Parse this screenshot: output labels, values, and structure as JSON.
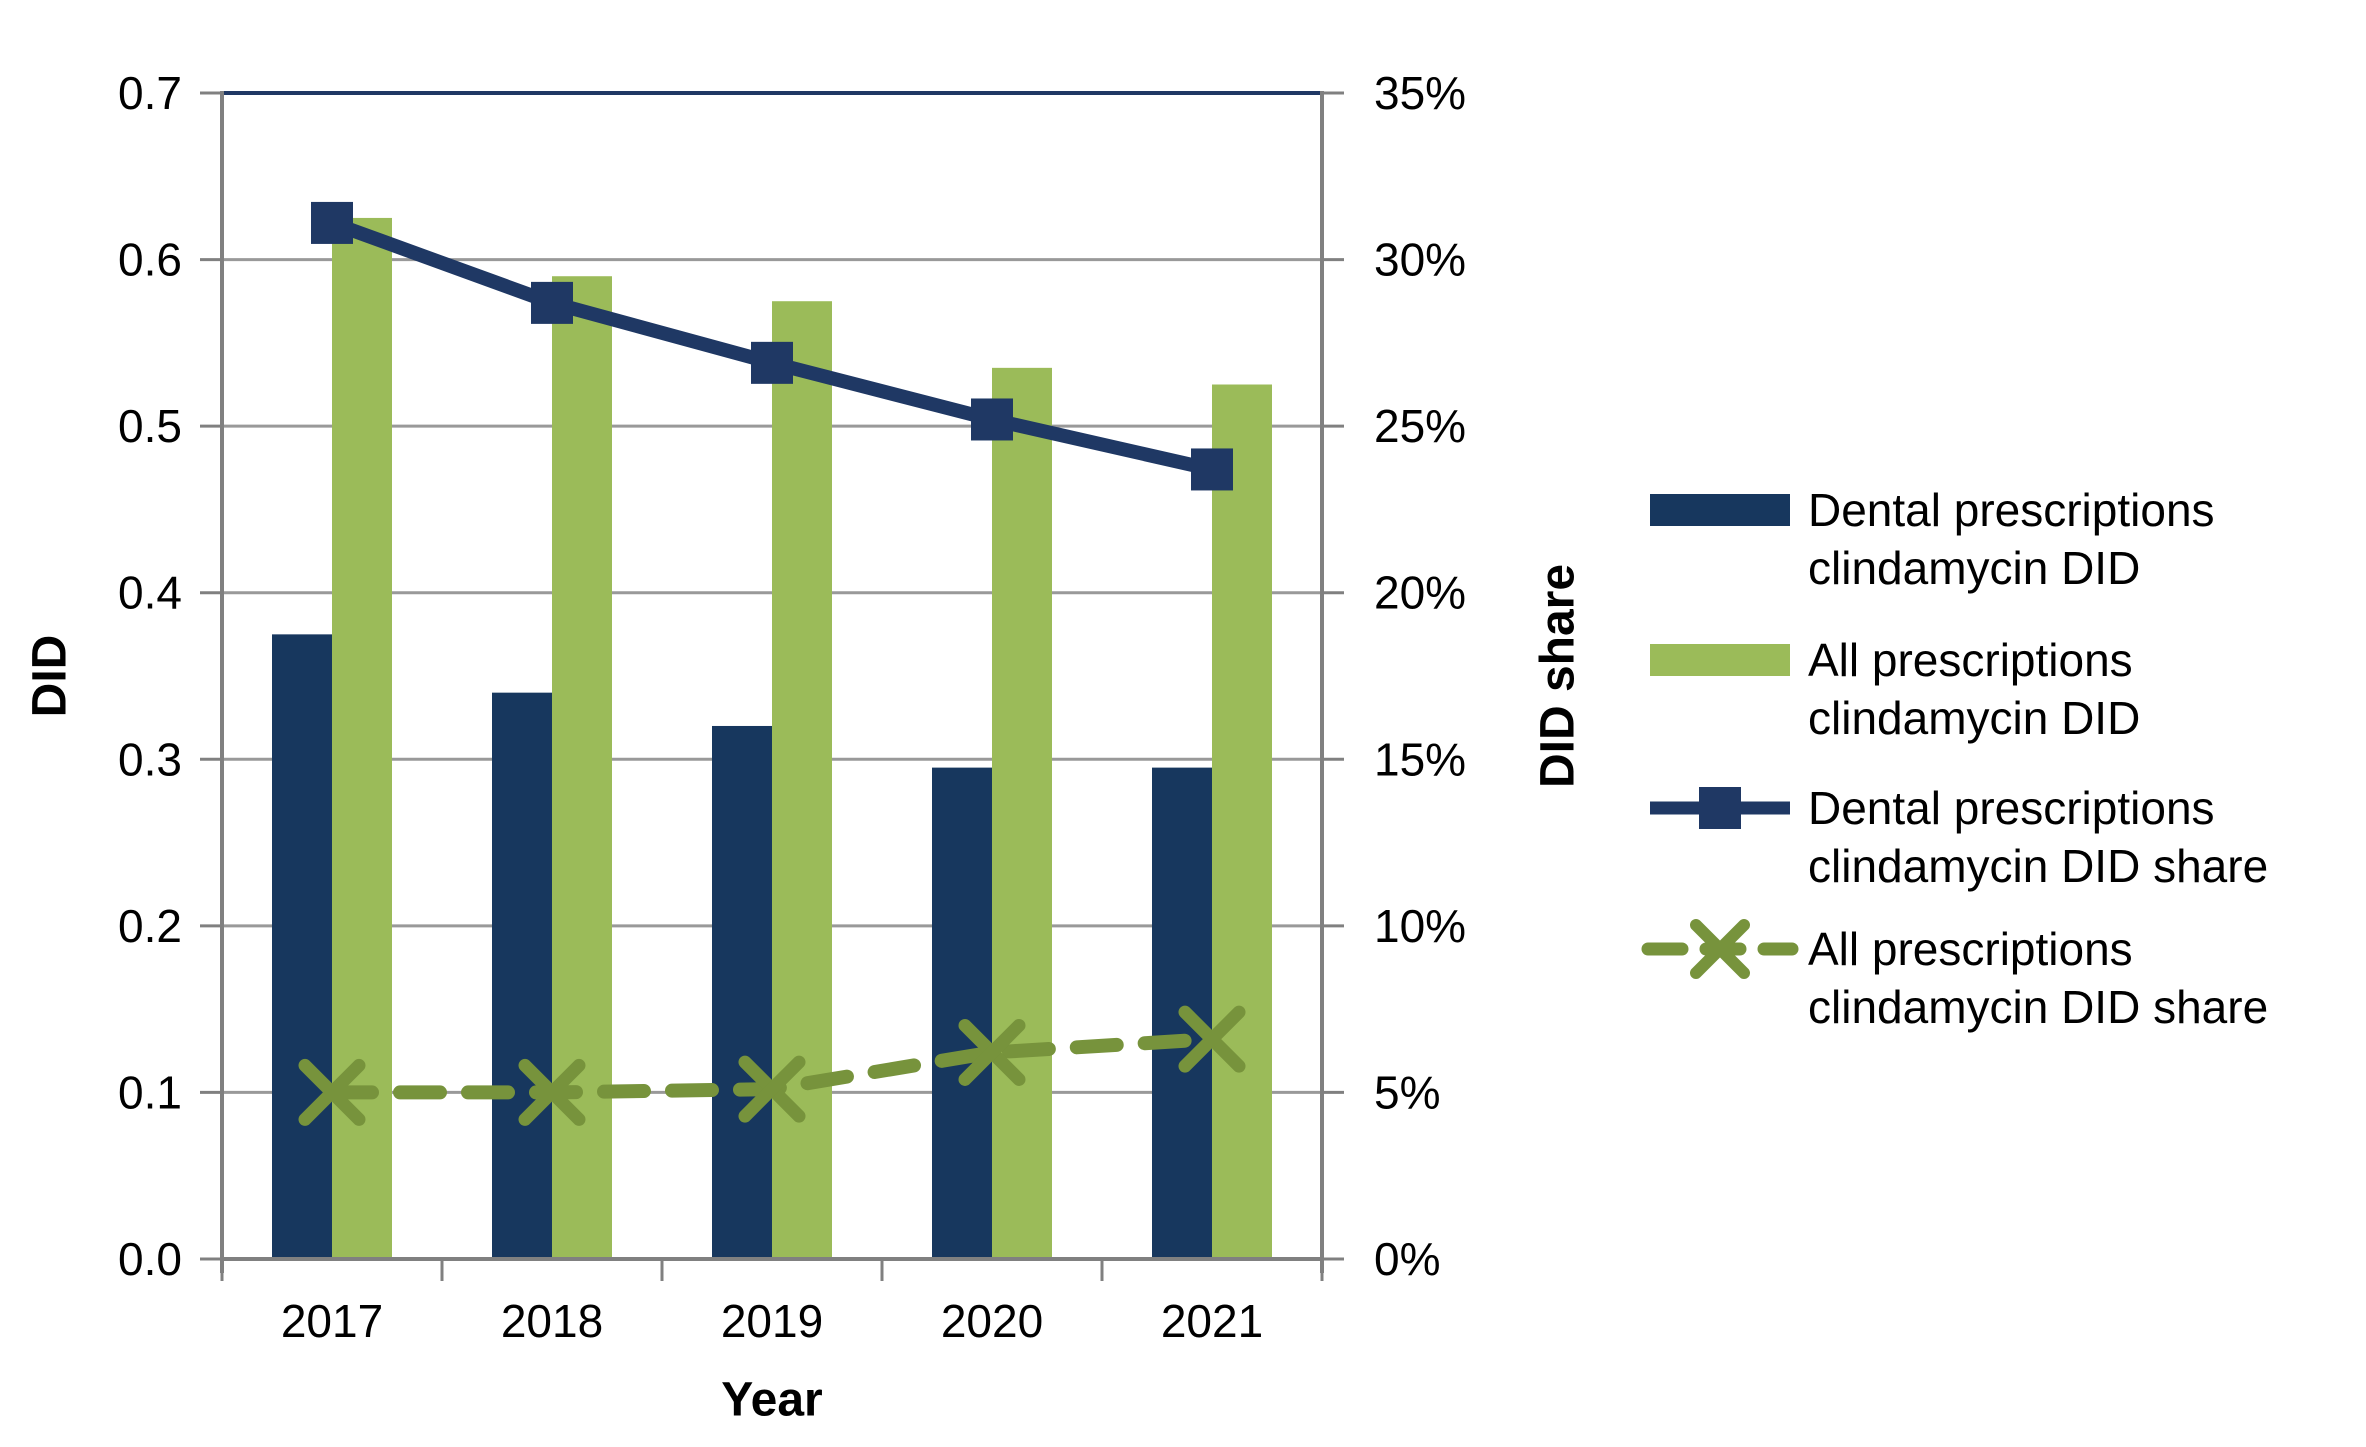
{
  "chart_data": {
    "type": "combo-bar-line",
    "categories": [
      "2017",
      "2018",
      "2019",
      "2020",
      "2021"
    ],
    "series": [
      {
        "name": "Dental prescriptions clindamycin DID",
        "legend_lines": [
          "Dental prescriptions",
          "clindamycin DID"
        ],
        "type": "bar",
        "axis": "left",
        "color": "#17375E",
        "values": [
          0.375,
          0.34,
          0.32,
          0.295,
          0.295
        ]
      },
      {
        "name": "All prescriptions clindamycin DID",
        "legend_lines": [
          "All prescriptions",
          "clindamycin DID"
        ],
        "type": "bar",
        "axis": "left",
        "color": "#9BBB59",
        "values": [
          0.625,
          0.59,
          0.575,
          0.535,
          0.525
        ]
      },
      {
        "name": "Dental prescriptions clindamycin DID share",
        "legend_lines": [
          "Dental prescriptions",
          "clindamycin DID share"
        ],
        "type": "line",
        "axis": "right",
        "color": "#1F3864",
        "marker": "square",
        "dashed": false,
        "values": [
          31.1,
          28.7,
          26.9,
          25.2,
          23.7
        ]
      },
      {
        "name": "All prescriptions clindamycin DID share",
        "legend_lines": [
          "All prescriptions",
          "clindamycin DID share"
        ],
        "type": "line",
        "axis": "right",
        "color": "#77933C",
        "marker": "x",
        "dashed": true,
        "values": [
          5.0,
          5.0,
          5.1,
          6.2,
          6.6
        ]
      }
    ],
    "left_axis": {
      "label": "DID",
      "min": 0,
      "max": 0.7,
      "step": 0.1,
      "ticks": [
        "0.0",
        "0.1",
        "0.2",
        "0.3",
        "0.4",
        "0.5",
        "0.6",
        "0.7"
      ]
    },
    "right_axis": {
      "label": "DID share",
      "min": 0,
      "max": 35,
      "step": 5,
      "ticks": [
        "0%",
        "5%",
        "10%",
        "15%",
        "20%",
        "25%",
        "30%",
        "35%"
      ]
    },
    "x_axis": {
      "label": "Year"
    },
    "grid": true,
    "legend_position": "right",
    "colors": {
      "gridline": "#999999",
      "axis_line": "#808080",
      "top_border": "#1F3864",
      "text": "#000000",
      "background": "#FFFFFF"
    }
  }
}
